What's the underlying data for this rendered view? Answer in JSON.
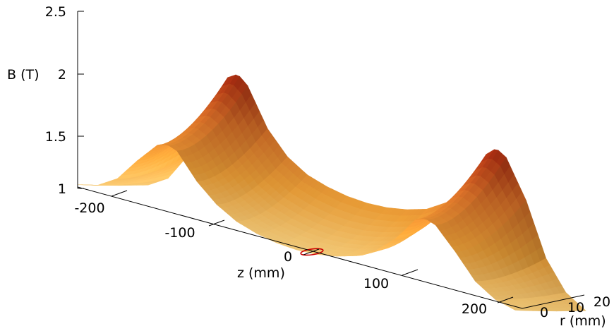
{
  "chart_data": {
    "type": "surface",
    "title": "",
    "zlabel": "B (T)",
    "xlabel": "z (mm)",
    "ylabel": "r (mm)",
    "zlim": [
      1,
      2.5
    ],
    "xlim": [
      -220,
      220
    ],
    "ylim": [
      0,
      20
    ],
    "z_ticks": [
      "1",
      "1.5",
      "2",
      "2.5"
    ],
    "x_ticks": [
      "-200",
      "-100",
      "0",
      "100",
      "200"
    ],
    "y_ticks": [
      "0",
      "10",
      "20"
    ],
    "colormap": [
      "#ffd580",
      "#f7a63a",
      "#e2752a",
      "#a8260f"
    ],
    "contour": {
      "level": "1",
      "color": "#cc0000",
      "z_center": 5,
      "r_center": 3
    },
    "profile_r0": {
      "z": [
        -220,
        -200,
        -180,
        -160,
        -140,
        -130,
        -120,
        -100,
        -80,
        -60,
        -40,
        -20,
        0,
        20,
        40,
        60,
        80,
        100,
        120,
        130,
        140,
        160,
        180,
        200,
        220
      ],
      "B": [
        1.02,
        1.06,
        1.16,
        1.35,
        1.52,
        1.55,
        1.52,
        1.32,
        1.18,
        1.09,
        1.04,
        1.01,
        1.0,
        1.01,
        1.04,
        1.09,
        1.18,
        1.32,
        1.52,
        1.55,
        1.52,
        1.35,
        1.16,
        1.06,
        1.02
      ]
    },
    "profile_r20": {
      "z": [
        -220,
        -200,
        -180,
        -160,
        -140,
        -130,
        -120,
        -100,
        -80,
        -60,
        -40,
        -20,
        0,
        20,
        40,
        60,
        80,
        100,
        120,
        130,
        140,
        160,
        180,
        200,
        220
      ],
      "B": [
        1.05,
        1.15,
        1.38,
        1.8,
        2.1,
        2.15,
        2.08,
        1.78,
        1.6,
        1.5,
        1.45,
        1.42,
        1.41,
        1.42,
        1.45,
        1.5,
        1.6,
        1.78,
        2.08,
        2.15,
        2.1,
        1.8,
        1.38,
        1.15,
        1.05
      ]
    }
  }
}
